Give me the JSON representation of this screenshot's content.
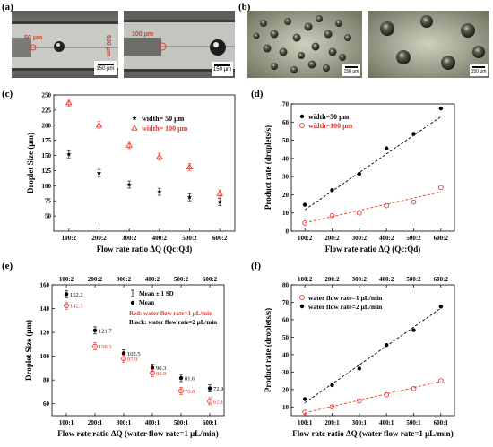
{
  "panel_labels": {
    "a": "(a)",
    "b": "(b)",
    "c": "(c)",
    "d": "(d)",
    "e": "(e)",
    "f": "(f)"
  },
  "micrographs": {
    "a_left": {
      "width_label": "50 μm",
      "channel_label": "500 μm",
      "scale": "150 μm"
    },
    "a_right": {
      "width_label": "100 μm",
      "scale": "150 μm"
    },
    "b_left": {
      "scale": "150 μm"
    },
    "b_right": {
      "scale": "150 μm"
    }
  },
  "colors": {
    "black_series": "#000000",
    "red_series": "#e8362a",
    "red_text": "#e8362a",
    "frame": "#000000"
  },
  "chart_data": [
    {
      "id": "c",
      "type": "scatter",
      "xlabel": "Flow rate ratio ΔQ (Qc:Qd)",
      "ylabel": "Droplet Size (μm)",
      "categories": [
        "100:2",
        "200:2",
        "300:2",
        "400:2",
        "500:2",
        "600:2"
      ],
      "ylim": [
        25,
        250
      ],
      "yticks": [
        50,
        75,
        100,
        125,
        150,
        175,
        200,
        225,
        250
      ],
      "legend": "top-right",
      "series": [
        {
          "name": "width= 50 μm",
          "marker": "star",
          "color": "#000000",
          "values": [
            152,
            121,
            102,
            90,
            81,
            73
          ]
        },
        {
          "name": "width= 100 μm",
          "marker": "triangle-open",
          "color": "#e8362a",
          "values": [
            237,
            200,
            167,
            148,
            131,
            87
          ]
        }
      ]
    },
    {
      "id": "d",
      "type": "scatter",
      "xlabel": "Flow rate ratio ΔQ (Qc:Qd)",
      "ylabel": "Product rate (droplets/s)",
      "categories": [
        "100:2",
        "200:2",
        "300:2",
        "400:2",
        "500:2",
        "600:2"
      ],
      "ylim": [
        0,
        70
      ],
      "yticks": [
        0,
        10,
        20,
        30,
        40,
        50,
        60,
        70
      ],
      "legend": "top-left",
      "series": [
        {
          "name": "width=50 μm",
          "marker": "dot",
          "color": "#000000",
          "values": [
            14.5,
            22.5,
            31.5,
            45.5,
            53.5,
            67.5
          ],
          "fit": [
            11.8,
            22.0,
            32.2,
            42.5,
            52.7,
            62.9
          ]
        },
        {
          "name": "width=100 μm",
          "marker": "circle-open",
          "color": "#e8362a",
          "values": [
            4.5,
            8.5,
            10,
            14,
            16,
            24
          ],
          "fit": [
            4.6,
            8.0,
            11.4,
            14.8,
            18.2,
            21.6
          ]
        }
      ]
    },
    {
      "id": "e",
      "type": "scatter",
      "xlabel": "Flow rate ratio ΔQ (water flow rate=1 μL/min)",
      "ylabel": "Droplet Size (μm)",
      "categories": [
        "100:1",
        "200:1",
        "300:1",
        "400:1",
        "500:1",
        "600:1"
      ],
      "top_categories": [
        "100:2",
        "200:2",
        "300:2",
        "400:2",
        "500:2",
        "600:2"
      ],
      "ylim": [
        50,
        160
      ],
      "yticks": [
        60,
        80,
        100,
        120,
        140,
        160
      ],
      "legend": "top-right",
      "legend_items": [
        "Mean ± 1 SD",
        "Mean"
      ],
      "notes": [
        "Red: water flow rate=1 μL/min",
        "Black: water flow rate=2 μL/min"
      ],
      "series": [
        {
          "name": "Black",
          "marker": "dot",
          "color": "#000000",
          "values": [
            152.2,
            121.7,
            102.5,
            90.3,
            81.6,
            72.9
          ],
          "labels": [
            "152.2",
            "121.7",
            "102.5",
            "90.3",
            "81.6",
            "72.9"
          ]
        },
        {
          "name": "Red",
          "marker": "circle-open",
          "color": "#e8362a",
          "values": [
            142.5,
            108.3,
            97.9,
            85.9,
            70.8,
            62.1
          ],
          "labels": [
            "142.5",
            "108.3",
            "97.9",
            "85.9",
            "70.8",
            "62.1"
          ]
        }
      ]
    },
    {
      "id": "f",
      "type": "scatter",
      "xlabel": "Flow rate ratio ΔQ (water flow rate=1 μL/min)",
      "ylabel": "Product rate (droplets/s)",
      "categories": [
        "100:1",
        "200:1",
        "300:1",
        "400:1",
        "500:1",
        "600:1"
      ],
      "top_categories": [
        "100:2",
        "200:2",
        "300:2",
        "400:2",
        "500:2",
        "600:2"
      ],
      "ylim": [
        5,
        80
      ],
      "yticks": [
        10,
        20,
        30,
        40,
        50,
        60,
        70,
        80
      ],
      "legend": "top-left",
      "series": [
        {
          "name": "water flow rate=1 μL/min",
          "marker": "circle-open",
          "color": "#e8362a",
          "values": [
            7,
            10,
            13.5,
            17,
            20.5,
            25
          ],
          "fit": [
            6.7,
            10.3,
            13.9,
            17.5,
            21.1,
            24.7
          ]
        },
        {
          "name": "water flow rate=2 μL/min",
          "marker": "dot",
          "color": "#000000",
          "values": [
            14.5,
            22.5,
            32,
            45.5,
            54,
            67.5
          ],
          "fit": [
            12.4,
            23.2,
            34.1,
            44.9,
            55.8,
            66.6
          ]
        }
      ]
    }
  ]
}
